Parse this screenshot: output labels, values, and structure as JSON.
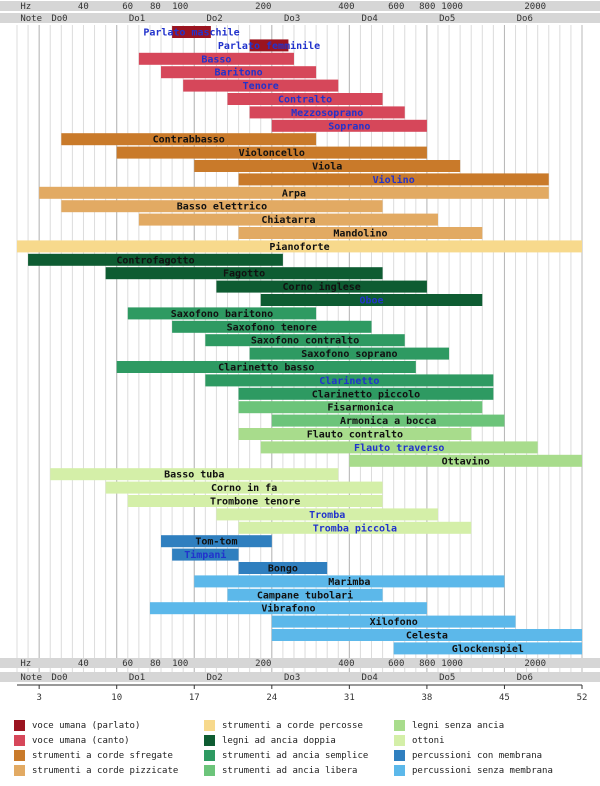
{
  "chart_data": {
    "type": "bar",
    "x_scale": "key index (1-52), labelled by frequency in Hz and by note name",
    "xlim": [
      1,
      52
    ],
    "hz_labels": [
      {
        "text": "Hz",
        "key": 0.3
      },
      {
        "text": "40",
        "key": 5.5
      },
      {
        "text": "60",
        "key": 9.5
      },
      {
        "text": "80",
        "key": 12
      },
      {
        "text": "100",
        "key": 14
      },
      {
        "text": "200",
        "key": 21.5
      },
      {
        "text": "400",
        "key": 29
      },
      {
        "text": "600",
        "key": 33.5
      },
      {
        "text": "800",
        "key": 36.3
      },
      {
        "text": "1000",
        "key": 38.3
      },
      {
        "text": "2000",
        "key": 45.8
      }
    ],
    "note_labels": [
      {
        "text": "Note",
        "key": 0.3
      },
      {
        "text": "Do0",
        "key": 3.1
      },
      {
        "text": "Do1",
        "key": 10.1
      },
      {
        "text": "Do2",
        "key": 17.1
      },
      {
        "text": "Do3",
        "key": 24.1
      },
      {
        "text": "Do4",
        "key": 31.1
      },
      {
        "text": "Do5",
        "key": 38.1
      },
      {
        "text": "Do6",
        "key": 45.1
      }
    ],
    "bottom_ticks": [
      3,
      10,
      17,
      24,
      31,
      38,
      45,
      52
    ],
    "colors": {
      "voce_parlato": "#9b1420",
      "voce_canto": "#d6475a",
      "corde_sfregate": "#c97a2a",
      "corde_pizzicate": "#e2aa63",
      "corde_percosse": "#f7d98c",
      "ancia_doppia": "#0e5c32",
      "ancia_semplice": "#2e9a62",
      "ancia_libera": "#6cc47a",
      "legni_senza_ancia": "#a8dc8c",
      "ottoni": "#d4efa8",
      "perc_membrana": "#2f7fbf",
      "perc_senza_membrana": "#5cb8ea"
    },
    "instruments": [
      {
        "name": "Parlato maschile",
        "start": 15,
        "end": 18.5,
        "group": "voce_parlato",
        "label_color": "#2233cc"
      },
      {
        "name": "Parlato femminile",
        "start": 22,
        "end": 25.5,
        "group": "voce_parlato",
        "label_color": "#2233cc"
      },
      {
        "name": "Basso",
        "start": 12,
        "end": 26,
        "group": "voce_canto",
        "label_color": "#2233cc"
      },
      {
        "name": "Baritono",
        "start": 14,
        "end": 28,
        "group": "voce_canto",
        "label_color": "#2233cc"
      },
      {
        "name": "Tenore",
        "start": 16,
        "end": 30,
        "group": "voce_canto",
        "label_color": "#2233cc"
      },
      {
        "name": "Contralto",
        "start": 20,
        "end": 34,
        "group": "voce_canto",
        "label_color": "#2233cc"
      },
      {
        "name": "Mezzosoprano",
        "start": 22,
        "end": 36,
        "group": "voce_canto",
        "label_color": "#2233cc"
      },
      {
        "name": "Soprano",
        "start": 24,
        "end": 38,
        "group": "voce_canto",
        "label_color": "#2233cc"
      },
      {
        "name": "Contrabbasso",
        "start": 5,
        "end": 28,
        "group": "corde_sfregate",
        "label_color": "#111111"
      },
      {
        "name": "Violoncello",
        "start": 10,
        "end": 38,
        "group": "corde_sfregate",
        "label_color": "#111111"
      },
      {
        "name": "Viola",
        "start": 17,
        "end": 41,
        "group": "corde_sfregate",
        "label_color": "#111111"
      },
      {
        "name": "Violino",
        "start": 21,
        "end": 49,
        "group": "corde_sfregate",
        "label_color": "#2233cc"
      },
      {
        "name": "Arpa",
        "start": 3,
        "end": 49,
        "group": "corde_pizzicate",
        "label_color": "#111111"
      },
      {
        "name": "Basso elettrico",
        "start": 5,
        "end": 34,
        "group": "corde_pizzicate",
        "label_color": "#111111"
      },
      {
        "name": "Chiatarra",
        "start": 12,
        "end": 39,
        "group": "corde_pizzicate",
        "label_color": "#111111"
      },
      {
        "name": "Mandolino",
        "start": 21,
        "end": 43,
        "group": "corde_pizzicate",
        "label_color": "#111111"
      },
      {
        "name": "Pianoforte",
        "start": 1,
        "end": 52,
        "group": "corde_percosse",
        "label_color": "#111111"
      },
      {
        "name": "Controfagotto",
        "start": 2,
        "end": 25,
        "group": "ancia_doppia",
        "label_color": "#111111"
      },
      {
        "name": "Fagotto",
        "start": 9,
        "end": 34,
        "group": "ancia_doppia",
        "label_color": "#111111"
      },
      {
        "name": "Corno inglese",
        "start": 19,
        "end": 38,
        "group": "ancia_doppia",
        "label_color": "#111111"
      },
      {
        "name": "Oboe",
        "start": 23,
        "end": 43,
        "group": "ancia_doppia",
        "label_color": "#2233cc"
      },
      {
        "name": "Saxofono baritono",
        "start": 11,
        "end": 28,
        "group": "ancia_semplice",
        "label_color": "#111111"
      },
      {
        "name": "Saxofono tenore",
        "start": 15,
        "end": 33,
        "group": "ancia_semplice",
        "label_color": "#111111"
      },
      {
        "name": "Saxofono contralto",
        "start": 18,
        "end": 36,
        "group": "ancia_semplice",
        "label_color": "#111111"
      },
      {
        "name": "Saxofono soprano",
        "start": 22,
        "end": 40,
        "group": "ancia_semplice",
        "label_color": "#111111"
      },
      {
        "name": "Clarinetto basso",
        "start": 10,
        "end": 37,
        "group": "ancia_semplice",
        "label_color": "#111111"
      },
      {
        "name": "Clarinetto",
        "start": 18,
        "end": 44,
        "group": "ancia_semplice",
        "label_color": "#2233cc"
      },
      {
        "name": "Clarinetto piccolo",
        "start": 21,
        "end": 44,
        "group": "ancia_semplice",
        "label_color": "#111111"
      },
      {
        "name": "Fisarmonica",
        "start": 21,
        "end": 43,
        "group": "ancia_libera",
        "label_color": "#111111"
      },
      {
        "name": "Armonica a bocca",
        "start": 24,
        "end": 45,
        "group": "ancia_libera",
        "label_color": "#111111"
      },
      {
        "name": "Flauto contralto",
        "start": 21,
        "end": 42,
        "group": "legni_senza_ancia",
        "label_color": "#111111"
      },
      {
        "name": "Flauto traverso",
        "start": 23,
        "end": 48,
        "group": "legni_senza_ancia",
        "label_color": "#2233cc"
      },
      {
        "name": "Ottavino",
        "start": 31,
        "end": 52,
        "group": "legni_senza_ancia",
        "label_color": "#111111"
      },
      {
        "name": "Basso tuba",
        "start": 4,
        "end": 30,
        "group": "ottoni",
        "label_color": "#111111"
      },
      {
        "name": "Corno in fa",
        "start": 9,
        "end": 34,
        "group": "ottoni",
        "label_color": "#111111"
      },
      {
        "name": "Trombone tenore",
        "start": 11,
        "end": 34,
        "group": "ottoni",
        "label_color": "#111111"
      },
      {
        "name": "Tromba",
        "start": 19,
        "end": 39,
        "group": "ottoni",
        "label_color": "#2233cc"
      },
      {
        "name": "Tromba piccola",
        "start": 21,
        "end": 42,
        "group": "ottoni",
        "label_color": "#2233cc"
      },
      {
        "name": "Tom-tom",
        "start": 14,
        "end": 24,
        "group": "perc_membrana",
        "label_color": "#111111"
      },
      {
        "name": "Timpani",
        "start": 15,
        "end": 21,
        "group": "perc_membrana",
        "label_color": "#2233cc"
      },
      {
        "name": "Bongo",
        "start": 21,
        "end": 29,
        "group": "perc_membrana",
        "label_color": "#111111"
      },
      {
        "name": "Marimba",
        "start": 17,
        "end": 45,
        "group": "perc_senza_membrana",
        "label_color": "#111111"
      },
      {
        "name": "Campane tubolari",
        "start": 20,
        "end": 34,
        "group": "perc_senza_membrana",
        "label_color": "#111111"
      },
      {
        "name": "Vibrafono",
        "start": 13,
        "end": 38,
        "group": "perc_senza_membrana",
        "label_color": "#111111"
      },
      {
        "name": "Xilofono",
        "start": 24,
        "end": 46,
        "group": "perc_senza_membrana",
        "label_color": "#111111"
      },
      {
        "name": "Celesta",
        "start": 24,
        "end": 52,
        "group": "perc_senza_membrana",
        "label_color": "#111111"
      },
      {
        "name": "Glockenspiel",
        "start": 35,
        "end": 52,
        "group": "perc_senza_membrana",
        "label_color": "#111111"
      }
    ],
    "legend": [
      {
        "group": "voce_parlato",
        "label": "voce umana (parlato)"
      },
      {
        "group": "voce_canto",
        "label": "voce umana (canto)"
      },
      {
        "group": "corde_sfregate",
        "label": "strumenti a corde sfregate"
      },
      {
        "group": "corde_pizzicate",
        "label": "strumenti a corde pizzicate"
      },
      {
        "group": "corde_percosse",
        "label": "strumenti a corde percosse"
      },
      {
        "group": "ancia_doppia",
        "label": "legni ad ancia doppia"
      },
      {
        "group": "ancia_semplice",
        "label": "strumenti ad ancia semplice"
      },
      {
        "group": "ancia_libera",
        "label": "strumenti ad ancia libera"
      },
      {
        "group": "legni_senza_ancia",
        "label": "legni senza ancia"
      },
      {
        "group": "ottoni",
        "label": "ottoni"
      },
      {
        "group": "perc_membrana",
        "label": "percussioni con membrana"
      },
      {
        "group": "perc_senza_membrana",
        "label": "percussioni senza membrana"
      }
    ],
    "legend_position": "bottom",
    "grid": true
  }
}
